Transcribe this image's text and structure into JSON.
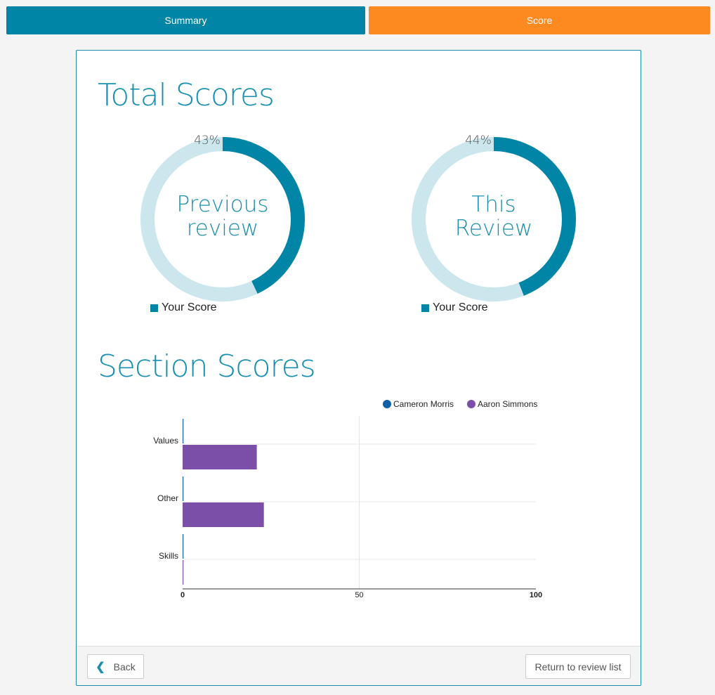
{
  "tabs": {
    "summary": "Summary",
    "score": "Score"
  },
  "colors": {
    "tab_summary": "#0085a6",
    "tab_score": "#fd8921",
    "accent": "#1a8fb0",
    "donut_fill": "#0085a6",
    "donut_track": "#cce6ee",
    "series_cameron": "#0f5ea8",
    "series_aaron": "#7b4fa8"
  },
  "total_scores": {
    "title": "Total Scores",
    "previous": {
      "percent_label": "43%",
      "value": 43,
      "label_line1": "Previous",
      "label_line2": "review",
      "legend": "Your Score"
    },
    "current": {
      "percent_label": "44%",
      "value": 44,
      "label_line1": "This",
      "label_line2": "Review",
      "legend": "Your Score"
    }
  },
  "section_scores": {
    "title": "Section Scores",
    "chart_data": {
      "type": "bar",
      "orientation": "horizontal",
      "categories": [
        "Values",
        "Other",
        "Skills"
      ],
      "series": [
        {
          "name": "Cameron Morris",
          "values": [
            0,
            0,
            0
          ]
        },
        {
          "name": "Aaron Simmons",
          "values": [
            21,
            23,
            0
          ]
        }
      ],
      "x_ticks": [
        "0",
        "50",
        "100"
      ],
      "xlim": [
        0,
        100
      ],
      "legend_placement": "top-right",
      "grid": true
    }
  },
  "footer": {
    "back": "Back",
    "return": "Return to review list"
  }
}
